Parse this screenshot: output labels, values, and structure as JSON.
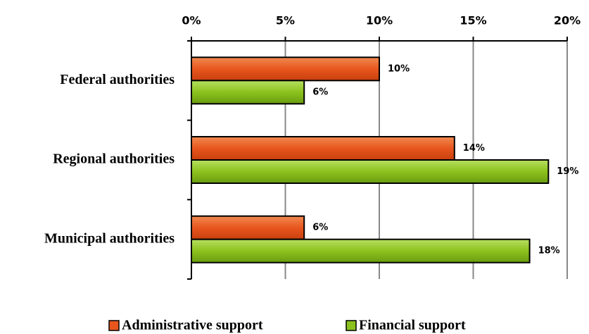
{
  "chart_data": {
    "type": "hbar",
    "categories": [
      "Federal authorities",
      "Regional authorities",
      "Municipal authorities"
    ],
    "series": [
      {
        "name": "Administrative support",
        "color": "#e8561e",
        "values": [
          10,
          14,
          6
        ],
        "value_labels": [
          "10%",
          "14%",
          "6%"
        ]
      },
      {
        "name": "Financial support",
        "color": "#8cc21e",
        "values": [
          6,
          19,
          18
        ],
        "value_labels": [
          "6%",
          "19%",
          "18%"
        ]
      }
    ],
    "xlim": [
      0,
      20
    ],
    "xticks": [
      {
        "value": 0,
        "label": "0%"
      },
      {
        "value": 5,
        "label": "5%"
      },
      {
        "value": 10,
        "label": "10%"
      },
      {
        "value": 15,
        "label": "15%"
      },
      {
        "value": 20,
        "label": "20%"
      }
    ],
    "grid": true,
    "legend": "bottom"
  }
}
